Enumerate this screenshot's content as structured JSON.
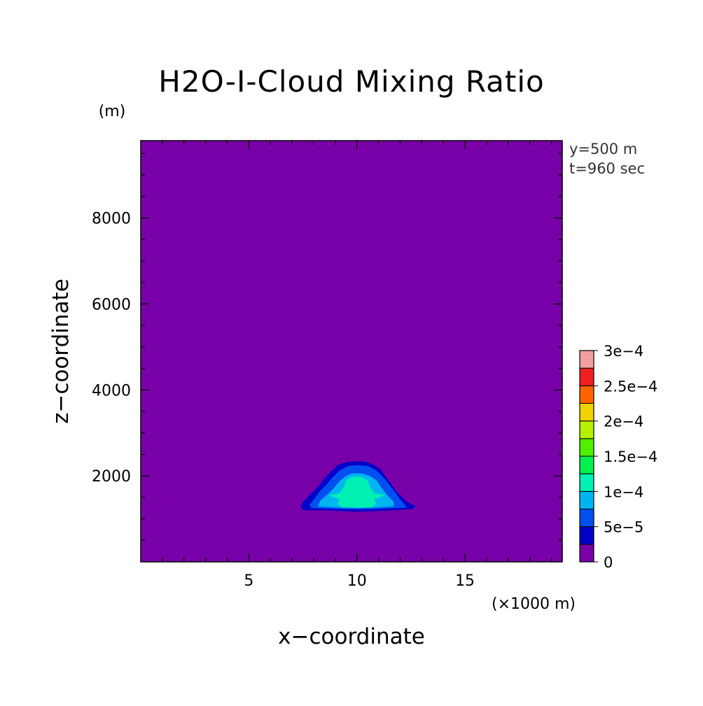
{
  "chart_data": {
    "type": "heatmap",
    "title": "H2O-I-Cloud Mixing Ratio",
    "xlabel": "x−coordinate",
    "ylabel": "z−coordinate",
    "x_unit": "(×1000 m)",
    "y_unit": "(m)",
    "xlim": [
      0,
      19.5
    ],
    "ylim": [
      0,
      9800
    ],
    "x_ticks": [
      5,
      10,
      15
    ],
    "y_ticks": [
      2000,
      4000,
      6000,
      8000
    ],
    "annotations": [
      "y=500 m",
      "t=960 sec"
    ],
    "colorbar": {
      "levels": [
        0,
        5e-05,
        0.0001,
        0.00015,
        0.0002,
        0.00025,
        0.0003
      ],
      "level_labels": [
        "0",
        "5e−5",
        "1e−4",
        "1.5e−4",
        "2e−4",
        "2.5e−4",
        "3e−4"
      ],
      "colors": [
        "#7800a8",
        "#0000c8",
        "#0050f0",
        "#00b4f0",
        "#00f0b4",
        "#00f050",
        "#50f000",
        "#b4f000",
        "#f0d200",
        "#ff6400",
        "#f02020",
        "#f0a0a0"
      ]
    },
    "contours": [
      {
        "band": "0.25e-4 to 0.5e-4",
        "color": "#0000c8",
        "points": [
          [
            7.5,
            1200
          ],
          [
            8.5,
            1200
          ],
          [
            9.3,
            1180
          ],
          [
            10.0,
            1170
          ],
          [
            10.8,
            1180
          ],
          [
            11.6,
            1200
          ],
          [
            12.6,
            1230
          ],
          [
            12.7,
            1300
          ],
          [
            12.3,
            1400
          ],
          [
            12.1,
            1500
          ],
          [
            11.8,
            1650
          ],
          [
            11.6,
            1800
          ],
          [
            11.3,
            2000
          ],
          [
            11.1,
            2150
          ],
          [
            10.8,
            2250
          ],
          [
            10.4,
            2330
          ],
          [
            10.0,
            2340
          ],
          [
            9.6,
            2330
          ],
          [
            9.1,
            2250
          ],
          [
            8.8,
            2100
          ],
          [
            8.5,
            1950
          ],
          [
            8.2,
            1750
          ],
          [
            7.8,
            1550
          ],
          [
            7.5,
            1400
          ],
          [
            7.4,
            1300
          ]
        ]
      },
      {
        "band": "0.5e-4 to 1e-4",
        "color": "#0050f0",
        "points": [
          [
            7.9,
            1250
          ],
          [
            9.0,
            1230
          ],
          [
            10.0,
            1220
          ],
          [
            11.0,
            1230
          ],
          [
            12.3,
            1260
          ],
          [
            12.2,
            1350
          ],
          [
            12.0,
            1450
          ],
          [
            11.8,
            1600
          ],
          [
            11.5,
            1800
          ],
          [
            11.2,
            1980
          ],
          [
            10.9,
            2130
          ],
          [
            10.5,
            2230
          ],
          [
            10.0,
            2250
          ],
          [
            9.6,
            2230
          ],
          [
            9.2,
            2130
          ],
          [
            8.9,
            1980
          ],
          [
            8.6,
            1800
          ],
          [
            8.3,
            1650
          ],
          [
            8.0,
            1450
          ],
          [
            7.8,
            1320
          ]
        ]
      },
      {
        "band": "1e-4 to 1.5e-4",
        "color": "#00b4f0",
        "points": [
          [
            8.2,
            1290
          ],
          [
            9.2,
            1260
          ],
          [
            10.0,
            1250
          ],
          [
            10.8,
            1260
          ],
          [
            11.7,
            1290
          ],
          [
            11.7,
            1400
          ],
          [
            11.4,
            1550
          ],
          [
            11.1,
            1750
          ],
          [
            10.9,
            1900
          ],
          [
            10.6,
            2000
          ],
          [
            10.2,
            2060
          ],
          [
            9.8,
            2060
          ],
          [
            9.5,
            2000
          ],
          [
            9.2,
            1880
          ],
          [
            8.9,
            1700
          ],
          [
            8.6,
            1550
          ],
          [
            8.3,
            1420
          ]
        ]
      },
      {
        "band": "1.5e-4 to 2e-4",
        "color": "#00f0b4",
        "points": [
          [
            9.3,
            1270
          ],
          [
            10.0,
            1260
          ],
          [
            10.7,
            1270
          ],
          [
            10.9,
            1350
          ],
          [
            10.8,
            1450
          ],
          [
            11.3,
            1550
          ],
          [
            10.8,
            1600
          ],
          [
            10.6,
            1750
          ],
          [
            10.5,
            1900
          ],
          [
            10.2,
            1980
          ],
          [
            9.8,
            1980
          ],
          [
            9.5,
            1900
          ],
          [
            9.4,
            1750
          ],
          [
            9.2,
            1600
          ],
          [
            8.7,
            1550
          ],
          [
            9.2,
            1450
          ],
          [
            9.1,
            1350
          ]
        ]
      }
    ]
  }
}
